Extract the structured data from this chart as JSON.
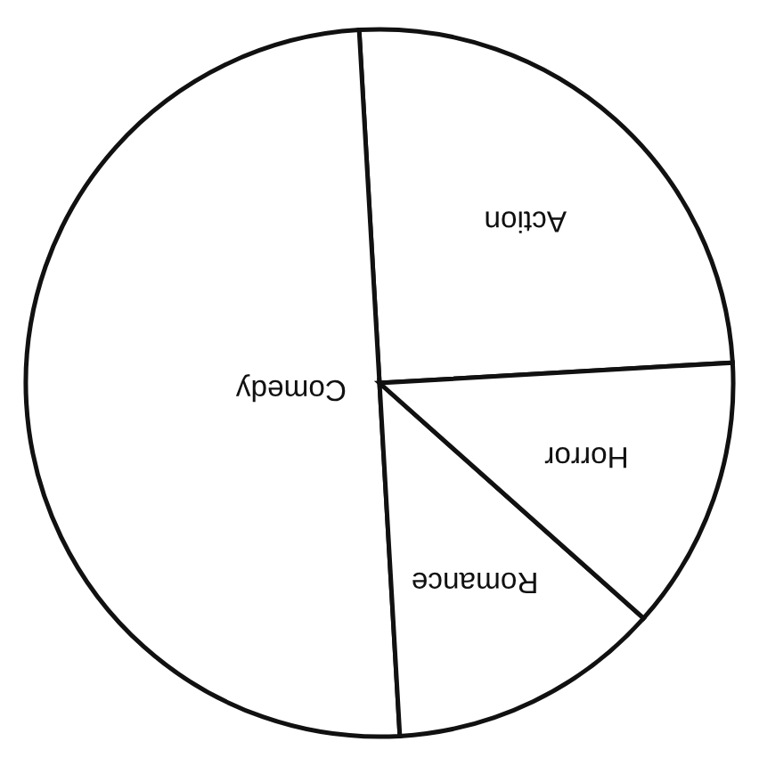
{
  "chart_data": {
    "type": "pie",
    "categories": [
      "Action",
      "Comedy",
      "Romance",
      "Horror"
    ],
    "values": [
      25,
      50,
      12.5,
      12.5
    ],
    "colors": [
      "#ffffff",
      "#ffffff",
      "#ffffff",
      "#ffffff"
    ]
  }
}
